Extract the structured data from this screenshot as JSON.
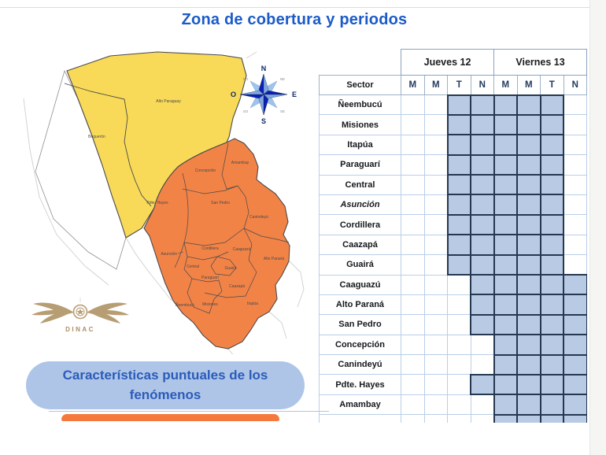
{
  "page": {
    "title": "Zona de cobertura y periodos"
  },
  "map": {
    "labels": [
      {
        "id": "alto-paraguay",
        "text": "Alto Paraguay"
      },
      {
        "id": "boqueron",
        "text": "Boquerón"
      },
      {
        "id": "pdte-hayes",
        "text": "Pdte. Hayes"
      },
      {
        "id": "concepcion",
        "text": "Concepción"
      },
      {
        "id": "amambay",
        "text": "Amambay"
      },
      {
        "id": "san-pedro",
        "text": "San Pedro"
      },
      {
        "id": "canindeyu",
        "text": "Canindeyú"
      },
      {
        "id": "cordillera",
        "text": "Cordillera"
      },
      {
        "id": "caaguazu",
        "text": "Caaguazú"
      },
      {
        "id": "alto-parana",
        "text": "Alto Paraná"
      },
      {
        "id": "asuncion",
        "text": "Asunción"
      },
      {
        "id": "central",
        "text": "Central"
      },
      {
        "id": "guaira",
        "text": "Guairá"
      },
      {
        "id": "paraguari",
        "text": "Paraguarí"
      },
      {
        "id": "caazapa",
        "text": "Caazapá"
      },
      {
        "id": "neembucu",
        "text": "Ñeembucú"
      },
      {
        "id": "misiones",
        "text": "Misiones"
      },
      {
        "id": "itapua",
        "text": "Itapúa"
      }
    ],
    "compass": {
      "n": "N",
      "s": "S",
      "e": "E",
      "o": "O",
      "no": "NO",
      "ne": "NE",
      "so": "SO",
      "se": "SE"
    },
    "logo_text": "DINAC"
  },
  "table": {
    "sector_header": "Sector",
    "day_headers": [
      "Jueves 12",
      "Viernes 13"
    ],
    "period_headers": [
      "M",
      "M",
      "T",
      "N",
      "M",
      "M",
      "T",
      "N"
    ],
    "rows": [
      {
        "sector": "Ñeembucú",
        "italic": false,
        "filled": [
          0,
          0,
          1,
          1,
          1,
          1,
          1,
          0
        ]
      },
      {
        "sector": "Misiones",
        "italic": false,
        "filled": [
          0,
          0,
          1,
          1,
          1,
          1,
          1,
          0
        ]
      },
      {
        "sector": "Itapúa",
        "italic": false,
        "filled": [
          0,
          0,
          1,
          1,
          1,
          1,
          1,
          0
        ]
      },
      {
        "sector": "Paraguarí",
        "italic": false,
        "filled": [
          0,
          0,
          1,
          1,
          1,
          1,
          1,
          0
        ]
      },
      {
        "sector": "Central",
        "italic": false,
        "filled": [
          0,
          0,
          1,
          1,
          1,
          1,
          1,
          0
        ]
      },
      {
        "sector": "Asunción",
        "italic": true,
        "filled": [
          0,
          0,
          1,
          1,
          1,
          1,
          1,
          0
        ]
      },
      {
        "sector": "Cordillera",
        "italic": false,
        "filled": [
          0,
          0,
          1,
          1,
          1,
          1,
          1,
          0
        ]
      },
      {
        "sector": "Caazapá",
        "italic": false,
        "filled": [
          0,
          0,
          1,
          1,
          1,
          1,
          1,
          0
        ]
      },
      {
        "sector": "Guairá",
        "italic": false,
        "filled": [
          0,
          0,
          1,
          1,
          1,
          1,
          1,
          0
        ]
      },
      {
        "sector": "Caaguazú",
        "italic": false,
        "filled": [
          0,
          0,
          0,
          1,
          1,
          1,
          1,
          1
        ]
      },
      {
        "sector": "Alto Paraná",
        "italic": false,
        "filled": [
          0,
          0,
          0,
          1,
          1,
          1,
          1,
          1
        ]
      },
      {
        "sector": "San Pedro",
        "italic": false,
        "filled": [
          0,
          0,
          0,
          1,
          1,
          1,
          1,
          1
        ]
      },
      {
        "sector": "Concepción",
        "italic": false,
        "filled": [
          0,
          0,
          0,
          0,
          1,
          1,
          1,
          1
        ]
      },
      {
        "sector": "Canindeyú",
        "italic": false,
        "filled": [
          0,
          0,
          0,
          0,
          1,
          1,
          1,
          1
        ]
      },
      {
        "sector": "Pdte. Hayes",
        "italic": false,
        "filled": [
          0,
          0,
          0,
          1,
          1,
          1,
          1,
          1
        ]
      },
      {
        "sector": "Amambay",
        "italic": false,
        "filled": [
          0,
          0,
          0,
          0,
          1,
          1,
          1,
          1
        ]
      },
      {
        "sector": "",
        "italic": false,
        "filled": [
          0,
          0,
          0,
          0,
          1,
          1,
          1,
          1
        ]
      }
    ]
  },
  "footer": {
    "blue_pill_text": "Características puntuales de los fenómenos"
  },
  "colors": {
    "accent_blue": "#1b5bc8",
    "pill_bg": "#aec5e8",
    "pill_text": "#2b5cb8",
    "map_yellow": "#f8da58",
    "map_orange": "#f28347",
    "cell_fill": "#b9cbe4",
    "cell_border_dark": "#263850",
    "table_border_light": "#b9cfe8",
    "orange_bar": "#f5793d"
  }
}
